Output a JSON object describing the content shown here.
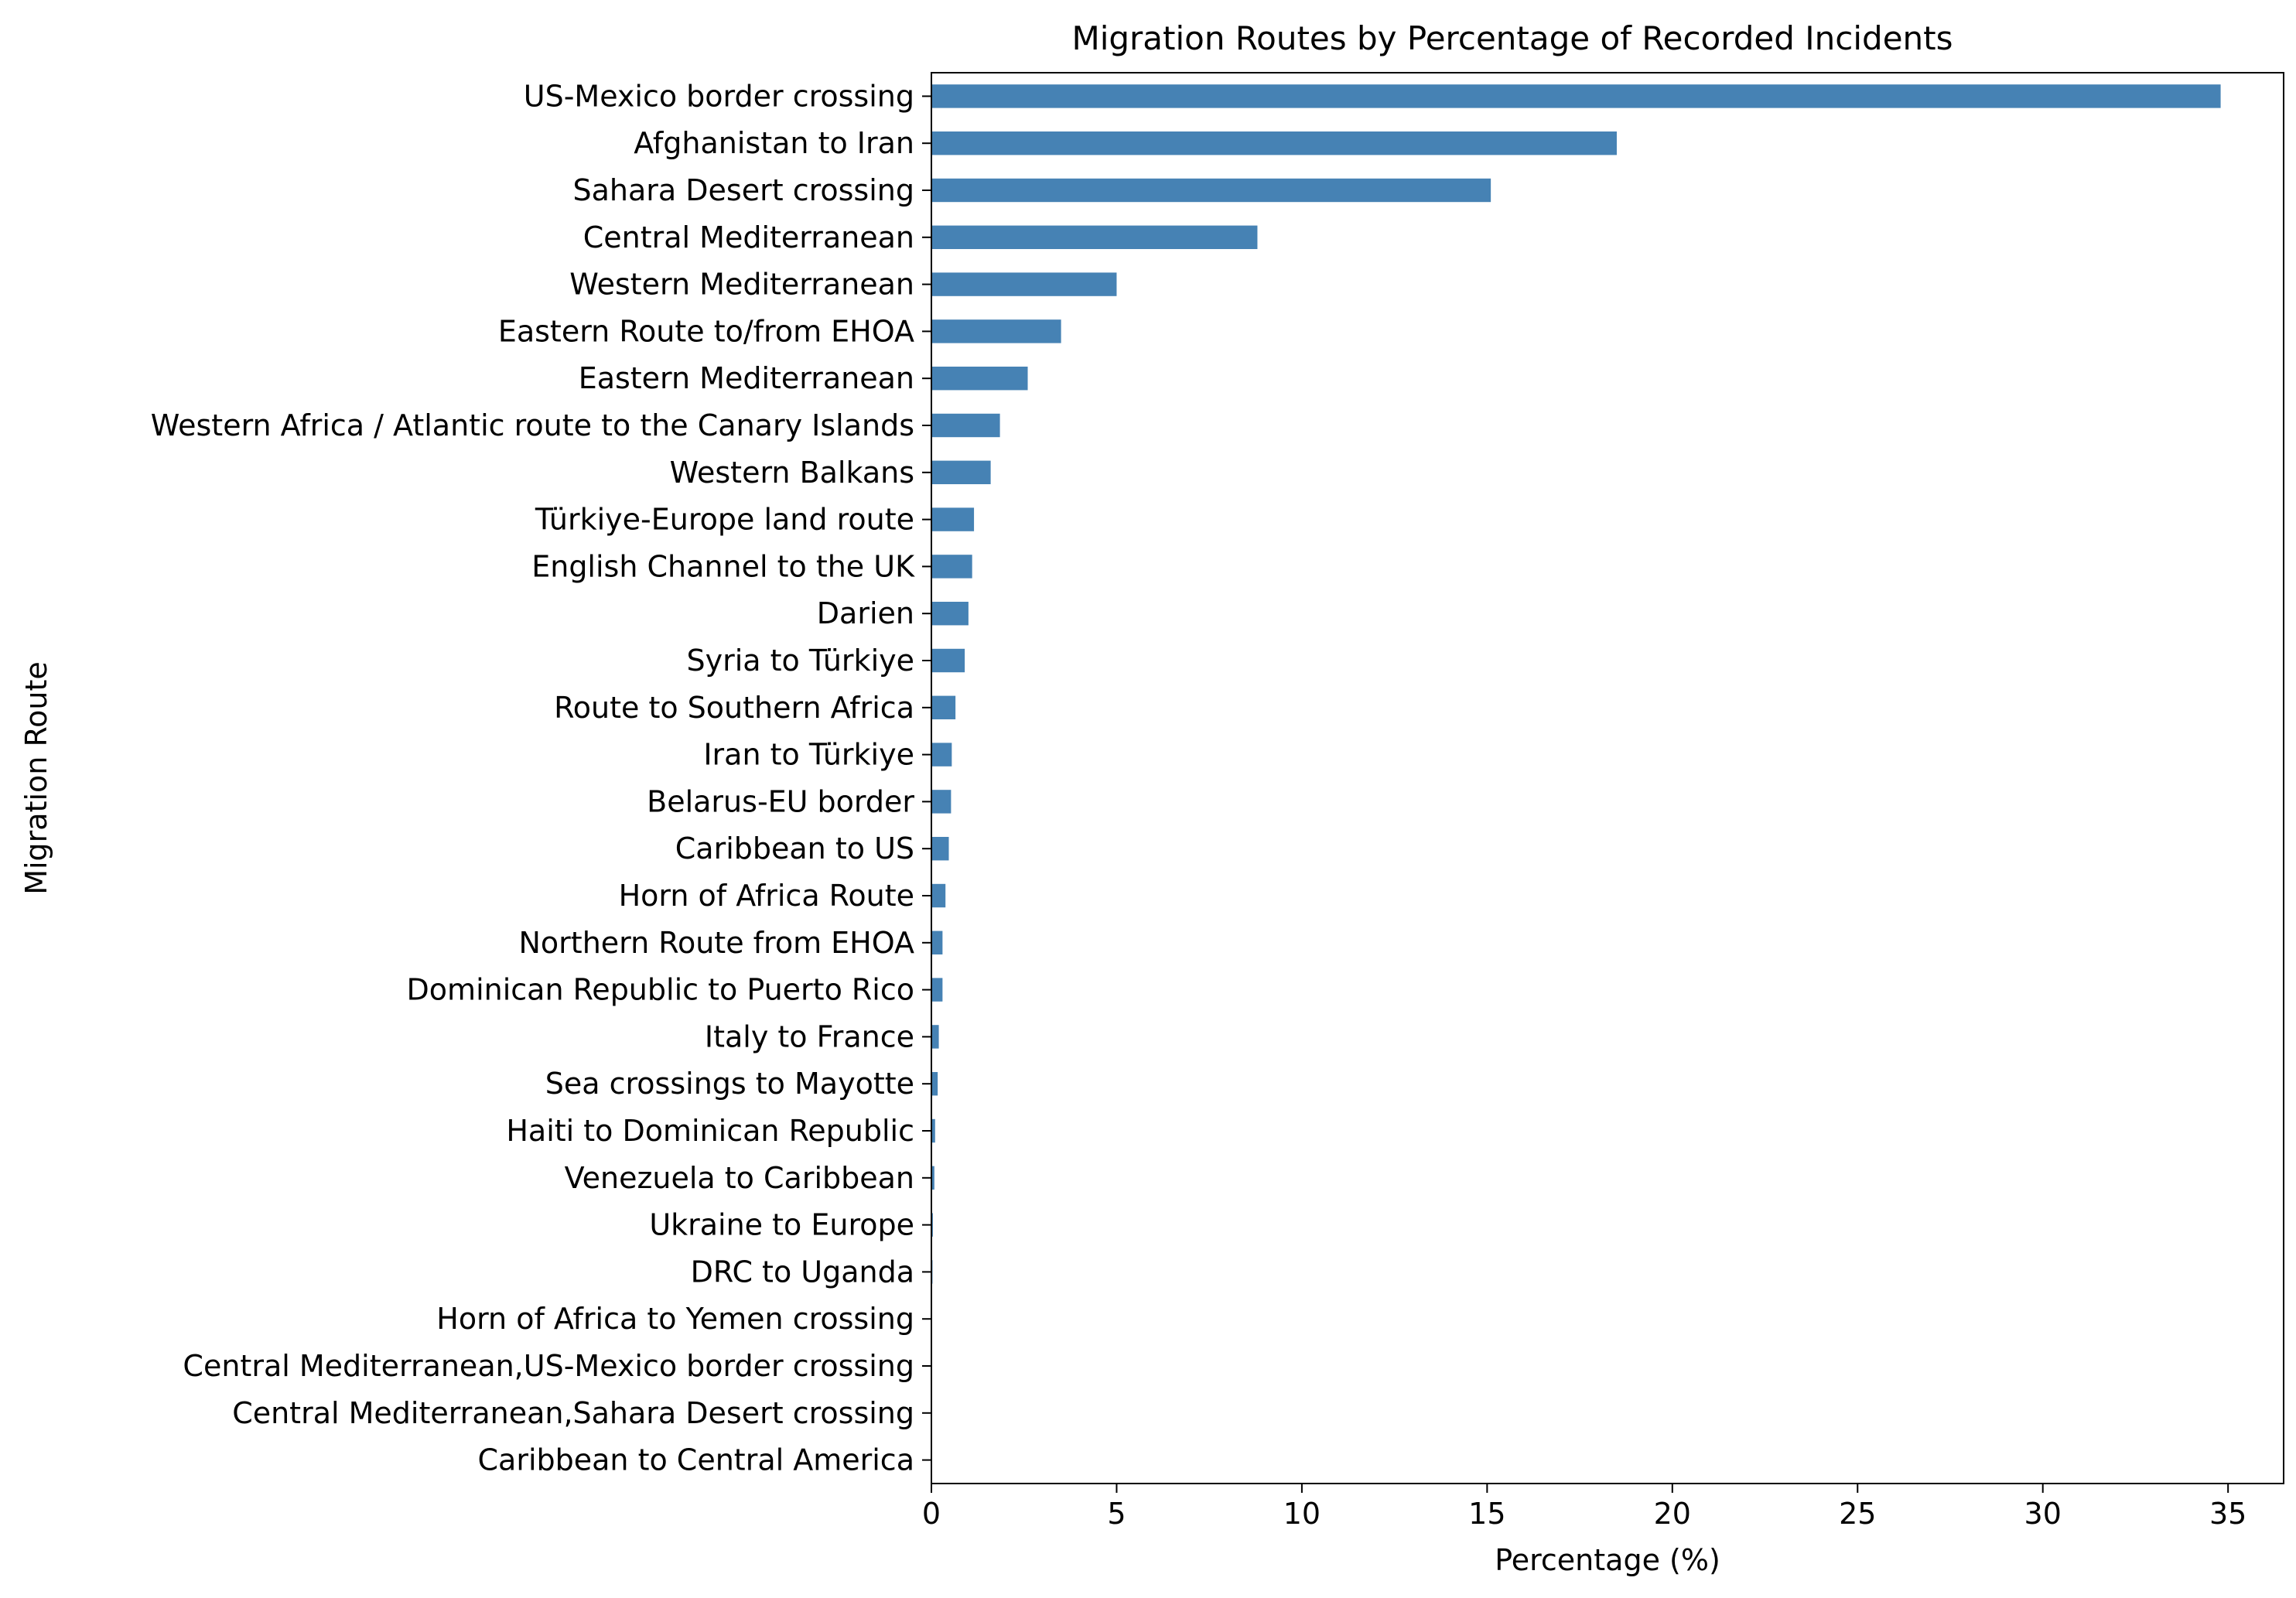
{
  "chart_data": {
    "type": "bar",
    "orientation": "horizontal",
    "title": "Migration Routes by Percentage of Recorded Incidents",
    "xlabel": "Percentage (%)",
    "ylabel": "Migration Route",
    "xlim": [
      0,
      36.5
    ],
    "xticks": [
      0,
      5,
      10,
      15,
      20,
      25,
      30,
      35
    ],
    "grid": false,
    "legend": "none",
    "bar_color": "#4682b4",
    "categories": [
      "US-Mexico border crossing",
      "Afghanistan to Iran",
      "Sahara Desert crossing",
      "Central Mediterranean",
      "Western Mediterranean",
      "Eastern Route to/from EHOA",
      "Eastern Mediterranean",
      "Western Africa / Atlantic route to the Canary Islands",
      "Western Balkans",
      "Türkiye-Europe land route",
      "English Channel to the UK",
      "Darien",
      "Syria to Türkiye",
      "Route to Southern Africa",
      "Iran to Türkiye",
      "Belarus-EU border",
      "Caribbean to US",
      "Horn of Africa Route",
      "Northern Route from EHOA",
      "Dominican Republic to Puerto Rico",
      "Italy to France",
      "Sea crossings to Mayotte",
      "Haiti to Dominican Republic",
      "Venezuela to Caribbean",
      "Ukraine to Europe",
      "DRC to Uganda",
      "Horn of Africa to Yemen crossing",
      "Central Mediterranean,US-Mexico border crossing",
      "Central Mediterranean,Sahara Desert crossing",
      "Caribbean to Central America"
    ],
    "values": [
      34.8,
      18.5,
      15.1,
      8.8,
      5.0,
      3.5,
      2.6,
      1.85,
      1.6,
      1.15,
      1.1,
      1.0,
      0.9,
      0.65,
      0.55,
      0.53,
      0.47,
      0.38,
      0.3,
      0.3,
      0.2,
      0.17,
      0.1,
      0.08,
      0.04,
      0.03,
      0.02,
      0.01,
      0.01,
      0.005
    ]
  }
}
